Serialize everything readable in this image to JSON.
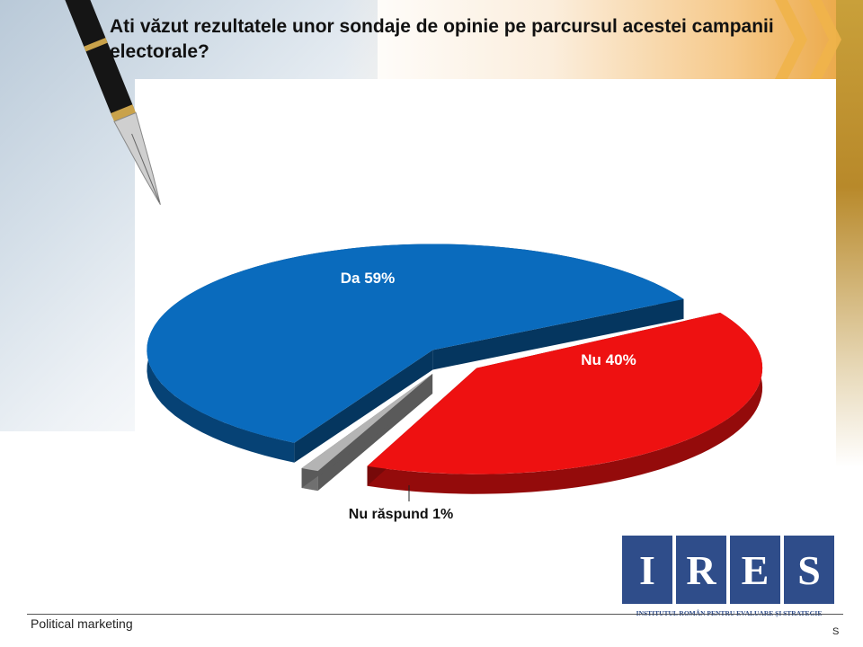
{
  "title": "Ati văzut rezultatele unor sondaje de opinie pe parcursul acestei campanii electorale?",
  "footer": {
    "left": "Political marketing",
    "right": "S"
  },
  "logo": {
    "letters": [
      "I",
      "R",
      "E",
      "S"
    ],
    "subtitle": "INSTITUTUL ROMÂN PENTRU EVALUARE ȘI STRATEGIE"
  },
  "colors": {
    "da": "#0a6bbd",
    "nu": "#ee1111",
    "nr": "#b4b4b4",
    "logo": "#2f4d8a"
  },
  "chart_data": {
    "type": "pie",
    "style": "3d-exploded",
    "slices": [
      {
        "label": "Da 59%",
        "value": 59,
        "color": "#0a6bbd"
      },
      {
        "label": "Nu 40%",
        "value": 40,
        "color": "#ee1111"
      },
      {
        "label": "Nu răspund 1%",
        "value": 1,
        "color": "#b4b4b4"
      }
    ]
  }
}
